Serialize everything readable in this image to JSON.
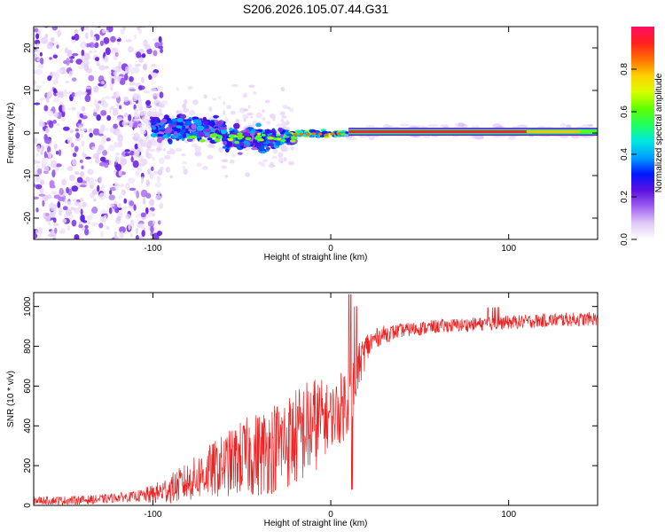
{
  "figure_title": "S206.2026.105.07.44.G31",
  "colormap": {
    "name": "rainbow",
    "stops": [
      "#ffffff",
      "#e0c8f8",
      "#a060f0",
      "#5a10e0",
      "#0018ff",
      "#00a0ff",
      "#00e8e0",
      "#20ff60",
      "#60ff00",
      "#d8ff00",
      "#ffd000",
      "#ff7000",
      "#ff2020",
      "#ff1060"
    ]
  },
  "chart_data": [
    {
      "type": "heatmap",
      "name": "spectrogram",
      "xlabel": "Height of straight line (km)",
      "ylabel": "Frequency (Hz)",
      "xlim": [
        -167,
        150
      ],
      "ylim": [
        -25,
        25
      ],
      "x_ticks": [
        -100,
        0,
        100
      ],
      "x_tick_labels": [
        "-100",
        "0",
        "100"
      ],
      "y_ticks": [
        -20,
        -10,
        0,
        10,
        20
      ],
      "y_tick_labels": [
        "-20",
        "-10",
        "0",
        "10",
        "20"
      ],
      "colorbar": {
        "label": "Normalized spectral amplitude",
        "range": [
          0,
          1
        ],
        "ticks": [
          0.0,
          0.2,
          0.4,
          0.6,
          0.8
        ],
        "tick_labels": [
          "0.0",
          "0.2",
          "0.4",
          "0.6",
          "0.8"
        ]
      },
      "description_regions": [
        {
          "x_range": [
            -167,
            -100
          ],
          "freq_spread": 25,
          "amplitude": 0.1,
          "note": "scattered noise"
        },
        {
          "x_range": [
            -100,
            -20
          ],
          "freq_spread": 5,
          "amplitude": 0.2,
          "note": "broadened signal"
        },
        {
          "x_range": [
            10,
            150
          ],
          "freq_center": 0.3,
          "amplitude": 0.9,
          "note": "narrow carrier line"
        }
      ]
    },
    {
      "type": "line",
      "name": "snr",
      "xlabel": "Height of straight line (km)",
      "ylabel": "SNR (10 * v/v)",
      "xlim": [
        -167,
        150
      ],
      "ylim": [
        0,
        1070
      ],
      "x_ticks": [
        -100,
        0,
        100
      ],
      "x_tick_labels": [
        "-100",
        "0",
        "100"
      ],
      "y_ticks": [
        0,
        200,
        400,
        600,
        800,
        1000
      ],
      "y_tick_labels": [
        "0",
        "200",
        "400",
        "600",
        "800",
        "1000"
      ],
      "series": [
        {
          "name": "SNR",
          "color": "#ee2222",
          "envelope_x": [
            -167,
            -150,
            -130,
            -120,
            -110,
            -100,
            -90,
            -80,
            -70,
            -60,
            -50,
            -40,
            -30,
            -20,
            -10,
            -5,
            0,
            5,
            8,
            12,
            15,
            20,
            25,
            30,
            40,
            50,
            60,
            70,
            80,
            90,
            100,
            110,
            120,
            130,
            140,
            150
          ],
          "envelope_y": [
            25,
            25,
            30,
            40,
            45,
            55,
            85,
            120,
            165,
            200,
            240,
            260,
            300,
            340,
            400,
            430,
            450,
            480,
            520,
            600,
            680,
            790,
            840,
            860,
            880,
            890,
            900,
            905,
            910,
            915,
            920,
            925,
            930,
            935,
            935,
            940
          ],
          "noise_amplitude_x": [
            -167,
            -110,
            -100,
            -80,
            -60,
            -40,
            -20,
            -10,
            0,
            10,
            15,
            25,
            40,
            150
          ],
          "noise_amplitude_y": [
            20,
            25,
            50,
            100,
            160,
            220,
            250,
            260,
            150,
            200,
            120,
            50,
            35,
            35
          ]
        }
      ]
    }
  ]
}
